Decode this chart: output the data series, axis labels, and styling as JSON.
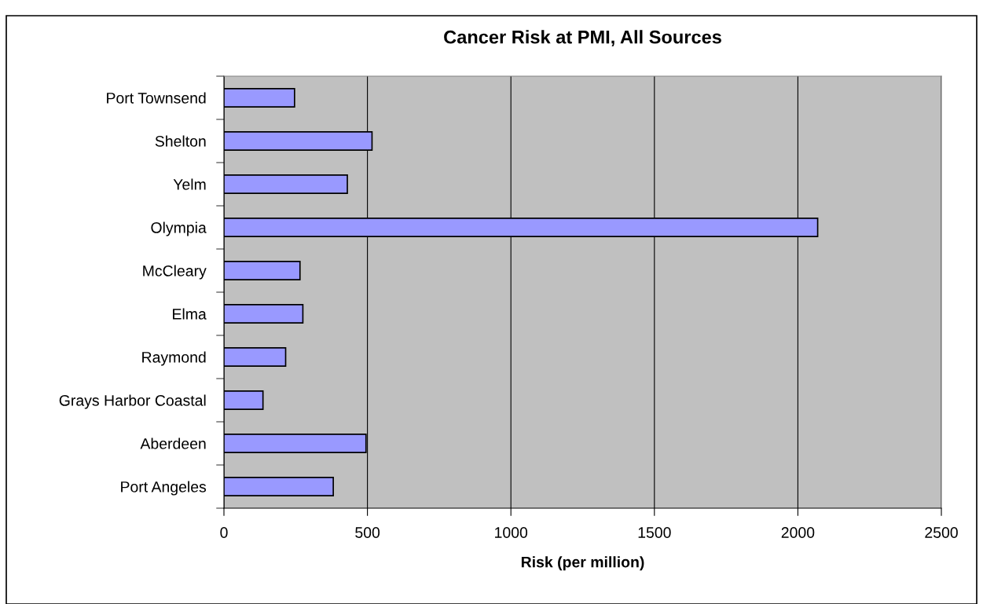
{
  "chart_data": {
    "type": "bar",
    "orientation": "horizontal",
    "title": "Cancer Risk at PMI, All Sources",
    "xlabel": "Risk (per million)",
    "categories": [
      "Port Townsend",
      "Shelton",
      "Yelm",
      "Olympia",
      "McCleary",
      "Elma",
      "Raymond",
      "Grays Harbor Coastal",
      "Aberdeen",
      "Port Angeles"
    ],
    "values": [
      246,
      516,
      430,
      2069,
      265,
      275,
      215,
      136,
      495,
      381
    ],
    "color": "#9999ff",
    "xlim": [
      0,
      2500
    ],
    "xticks": [
      0,
      500,
      1000,
      1500,
      2000,
      2500
    ],
    "grid": "x",
    "legend": false
  }
}
